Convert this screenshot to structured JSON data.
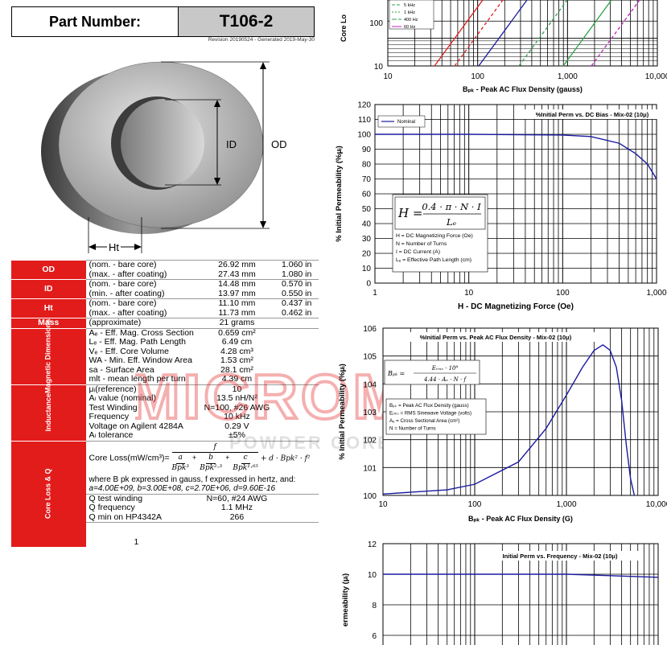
{
  "header": {
    "part_label": "Part Number:",
    "part_number": "T106-2",
    "revision": "Revision 20190524 - Generated 2019-May-30"
  },
  "diagram": {
    "id_label": "ID",
    "od_label": "OD",
    "ht_label": "Ht"
  },
  "specs": {
    "od": {
      "cat": "OD",
      "r1": {
        "desc": "(nom. - bare core)",
        "mm": "26.92 mm",
        "in": "1.060 in"
      },
      "r2": {
        "desc": "(max. - after coating)",
        "mm": "27.43 mm",
        "in": "1.080 in"
      }
    },
    "id": {
      "cat": "ID",
      "r1": {
        "desc": "(nom. - bare core)",
        "mm": "14.48 mm",
        "in": "0.570 in"
      },
      "r2": {
        "desc": "(min. - after coating)",
        "mm": "13.97 mm",
        "in": "0.550 in"
      }
    },
    "ht": {
      "cat": "Ht",
      "r1": {
        "desc": "(nom. - bare core)",
        "mm": "11.10 mm",
        "in": "0.437 in"
      },
      "r2": {
        "desc": "(max. - after coating)",
        "mm": "11.73 mm",
        "in": "0.462 in"
      }
    },
    "mass": {
      "cat": "Mass",
      "desc": "(approximate)",
      "value": "21 grams"
    },
    "magnetic": {
      "cat": "Magnetic Dimensions",
      "rows": [
        {
          "desc": "Aₑ - Eff. Mag. Cross Section",
          "value": "0.659 cm²"
        },
        {
          "desc": "Lₑ - Eff. Mag. Path Length",
          "value": "6.49 cm"
        },
        {
          "desc": "Vₑ - Eff. Core Volume",
          "value": "4.28 cm³"
        },
        {
          "desc": "WA  - Min. Eff. Window Area",
          "value": "1.53 cm²"
        },
        {
          "desc": "sa - Surface Area",
          "value": "28.1 cm²"
        },
        {
          "desc": "mlt - mean length per turn",
          "value": "4.39 cm"
        }
      ]
    },
    "inductance": {
      "cat": "Inductance",
      "rows": [
        {
          "desc": "μᵢ(reference)",
          "value": "10"
        },
        {
          "desc": "Aₗ value (nominal)",
          "value": "13.5 nH/N²"
        },
        {
          "desc": "Test Winding",
          "value": "N=100, #26 AWG"
        },
        {
          "desc": "Frequency",
          "value": "10 kHz"
        },
        {
          "desc": "Voltage on Agilent 4284A",
          "value": "0.29 V"
        },
        {
          "desc": "Aₗ tolerance",
          "value": "±5%"
        }
      ]
    },
    "coreloss": {
      "cat": "Core Loss & Q",
      "formula_label": "Core Loss(mW/cm³)=",
      "f": "f",
      "a": "a",
      "b": "b",
      "c": "c",
      "bpk3": "Bpk³",
      "bpk23": "Bpk²·³",
      "bpk165": "Bpk¹·⁶⁵",
      "tail": "+ d · Bpk² · f²",
      "where": "where B pk  expressed in gauss, f expressed in hertz, and:",
      "coeffs": "a=4.00E+09,   b=3.00E+08,  c=2.70E+06,   d=9.60E-16",
      "rows": [
        {
          "desc": "Q test winding",
          "value": "N=60, #24 AWG"
        },
        {
          "desc": "Q frequency",
          "value": "1.1 MHz"
        },
        {
          "desc": "Q min on HP4342A",
          "value": "266"
        }
      ],
      "footer": "1"
    }
  },
  "watermark": {
    "brand": "MICROMETALS",
    "tagline": "POWDER CORE SOLUTIONS"
  },
  "chart_data": [
    {
      "type": "line",
      "title": "",
      "ylabel": "Core Lo",
      "xlabel": "Bₚₖ - Peak AC Flux Density (gauss)",
      "x_ticks": [
        "10",
        "100",
        "1,000",
        "10,000"
      ],
      "y_ticks": [
        "10",
        "100"
      ],
      "legend": [
        {
          "name": "5 kHz",
          "color": "#2ea04a",
          "dash": "4,2"
        },
        {
          "name": "1 kHz",
          "color": "#2ea04a",
          "dash": "2,2"
        },
        {
          "name": "400 Hz",
          "color": "#2ea04a",
          "dash": "6,2"
        },
        {
          "name": "60 Hz",
          "color": "#c020c0",
          "dash": ""
        }
      ]
    },
    {
      "type": "line",
      "title": "%Initial Perm vs. DC Bias - Mix-02  (10μ)",
      "xlabel": "H - DC Magnetizing Force (Oe)",
      "ylabel": "% Initial Permeability (%μᵢ)",
      "x_ticks": [
        "1",
        "10",
        "100",
        "1,000"
      ],
      "y_ticks": [
        "0",
        "10",
        "20",
        "30",
        "40",
        "50",
        "60",
        "70",
        "80",
        "90",
        "100",
        "110",
        "120"
      ],
      "legend": [
        {
          "name": "Nominal",
          "color": "#1a1aa0"
        }
      ],
      "series": [
        {
          "name": "Nominal",
          "x": [
            1,
            10,
            100,
            200,
            400,
            600,
            800,
            1000
          ],
          "y": [
            100,
            100,
            99.5,
            98.5,
            94,
            87,
            80,
            70
          ]
        }
      ],
      "formula": {
        "lhs": "H =",
        "num": "0.4 · π · N · I",
        "den": "Lₑ",
        "defs": [
          "H = DC Magnetizing Force (Oe)",
          "N = Number of Turns",
          "I = DC Current (A)",
          "Lₑ = Effective Path Length (cm)"
        ]
      }
    },
    {
      "type": "line",
      "title": "%Initial Perm vs. Peak AC Flux Density - Mix-02  (10μ)",
      "xlabel": "Bₚₖ - Peak AC Flux Density (G)",
      "ylabel": "% Initial Permeability (%μᵢ)",
      "x_ticks": [
        "10",
        "100",
        "1,000",
        "10,000"
      ],
      "y_ticks": [
        "100",
        "101",
        "102",
        "103",
        "104",
        "105",
        "106"
      ],
      "series": [
        {
          "name": "",
          "x": [
            10,
            50,
            100,
            300,
            600,
            1000,
            1500,
            2000,
            2500,
            3000,
            3500,
            4000,
            4500,
            5000,
            5500
          ],
          "y": [
            100.05,
            100.2,
            100.4,
            101.2,
            102.4,
            103.6,
            104.6,
            105.2,
            105.4,
            105.2,
            104.6,
            103.4,
            101.8,
            100.6,
            100
          ]
        }
      ],
      "formula": {
        "lhs": "Bₚₖ =",
        "num": "Eᵣₘₛ · 10⁸",
        "den": "4.44 · Aₑ · N · f",
        "defs": [
          "Bₚₖ = Peak AC Flux Density (gauss)",
          "Eᵣₘₛ = RMS Sinewave Voltage (volts)",
          "Aₑ = Cross Sectional Area (cm²)",
          "N = Number of Turns"
        ]
      }
    },
    {
      "type": "line",
      "title": "Initial Perm vs. Frequency - Mix-02  (10μ)",
      "ylabel": "ermeability (μᵢ)",
      "y_ticks": [
        "6",
        "8",
        "10",
        "12"
      ],
      "series": [
        {
          "name": "",
          "x": [
            1,
            10,
            100,
            1000
          ],
          "y": [
            10,
            10,
            10,
            9.8
          ]
        }
      ]
    }
  ]
}
